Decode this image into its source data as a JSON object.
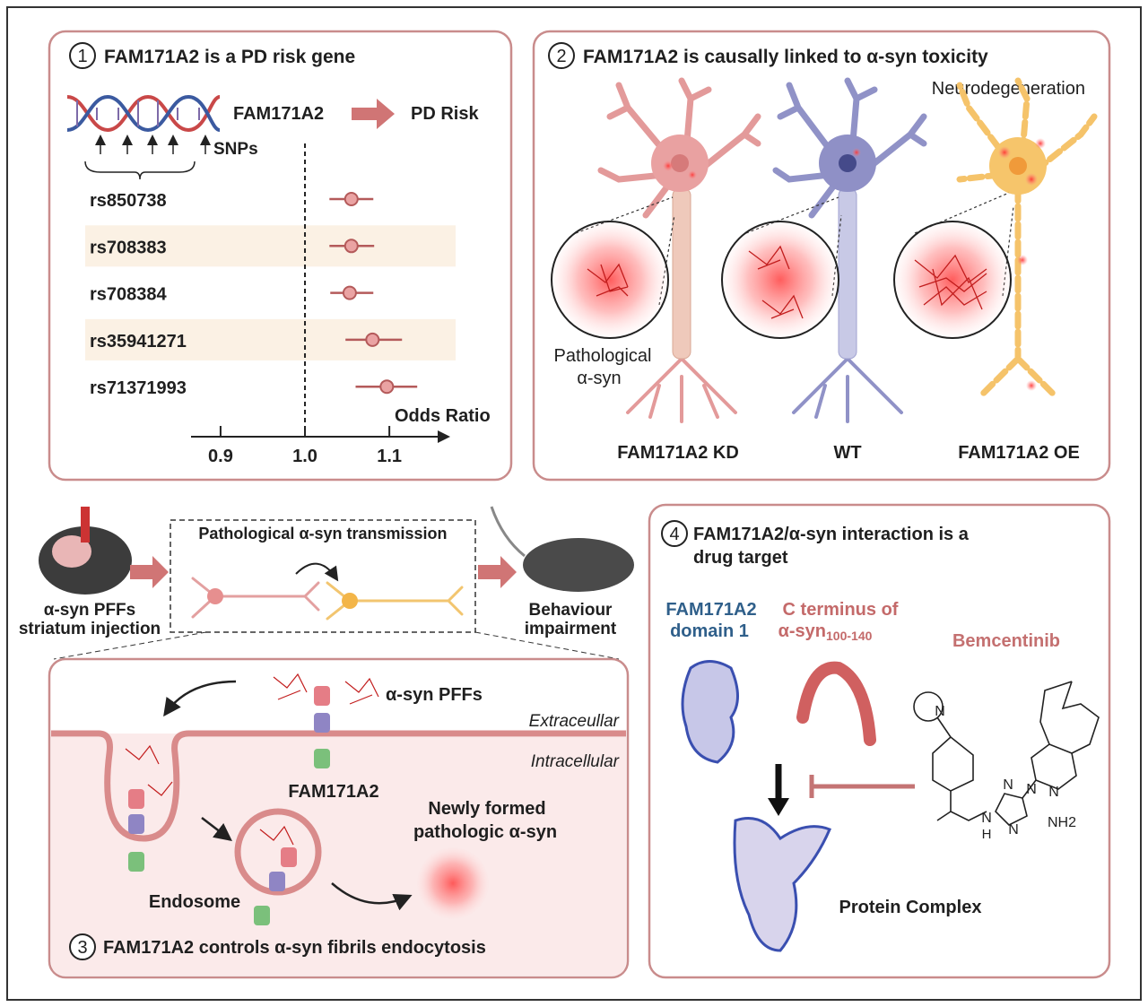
{
  "panel1": {
    "number": "1",
    "title": "FAM171A2 is a PD risk gene",
    "gene": "FAM171A2",
    "risk": "PD Risk",
    "snps_label": "SNPs",
    "forest": {
      "snps": [
        "rs850738",
        "rs708383",
        "rs708384",
        "rs35941271",
        "rs71371993"
      ],
      "odds_ratios": [
        1.055,
        1.055,
        1.053,
        1.08,
        1.097
      ],
      "ci_low": [
        1.029,
        1.029,
        1.03,
        1.048,
        1.06
      ],
      "ci_high": [
        1.081,
        1.082,
        1.081,
        1.115,
        1.133
      ],
      "xlim": [
        0.865,
        1.17
      ],
      "xticks": [
        0.9,
        {
          "value": 1,
          "label": "1.0"
        },
        1.1
      ],
      "reference": 1,
      "xlabel": "Odds Ratio"
    }
  },
  "panel2": {
    "number": "2",
    "title": "FAM171A2 is causally linked to α-syn toxicity",
    "neurodegeneration": "Neurodegeneration",
    "pathological": [
      "Pathological",
      "α-syn"
    ],
    "conditions": [
      "FAM171A2 KD",
      "WT",
      "FAM171A2 OE"
    ]
  },
  "transmission": {
    "injection": [
      "α-syn PFFs",
      "striatum injection"
    ],
    "title": "Pathological α-syn transmission",
    "outcome": [
      "Behaviour",
      "impairment"
    ]
  },
  "panel3": {
    "number": "3",
    "title": "FAM171A2 controls α-syn fibrils endocytosis",
    "pffs": "α-syn PFFs",
    "extracellular": "Extraceullar",
    "intracellular": "Intracellular",
    "receptor": "FAM171A2",
    "newly_formed": [
      "Newly formed",
      "pathologic α-syn"
    ],
    "endosome": "Endosome"
  },
  "panel4": {
    "number": "4",
    "title": [
      "FAM171A2/α-syn interaction is a",
      "drug target"
    ],
    "domain": [
      "FAM171A2",
      "domain 1"
    ],
    "cterminus": [
      "C terminus of",
      "α-syn",
      "100-140"
    ],
    "drug": "Bemcentinib",
    "complex": "Protein Complex",
    "atoms": [
      "N",
      "N",
      "N",
      "N",
      "N",
      "N",
      "H",
      "NH2"
    ]
  }
}
